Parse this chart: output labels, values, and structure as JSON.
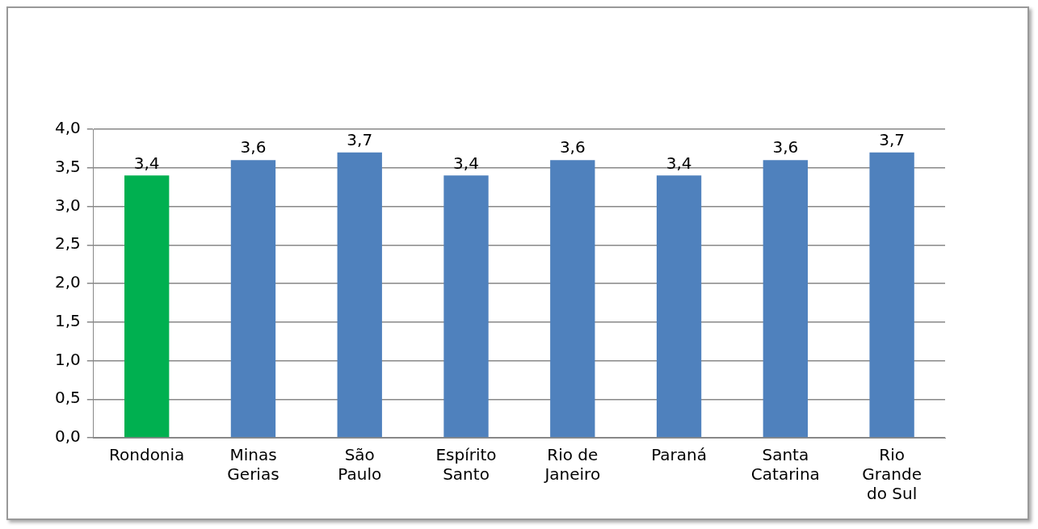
{
  "chart_data": {
    "type": "bar",
    "categories": [
      "Rondonia",
      "Minas Gerias",
      "São Paulo",
      "Espírito Santo",
      "Rio de Janeiro",
      "Paraná",
      "Santa Catarina",
      "Rio Grande do Sul"
    ],
    "values": [
      3.4,
      3.6,
      3.7,
      3.4,
      3.6,
      3.4,
      3.6,
      3.7
    ],
    "colors": [
      "#00b050",
      "#4f81bd",
      "#4f81bd",
      "#4f81bd",
      "#4f81bd",
      "#4f81bd",
      "#4f81bd",
      "#4f81bd"
    ],
    "value_labels": [
      "3,4",
      "3,6",
      "3,7",
      "3,4",
      "3,6",
      "3,4",
      "3,6",
      "3,7"
    ],
    "ylim": [
      0,
      4
    ],
    "yticks": [
      {
        "value": 0,
        "label": "0,0"
      },
      {
        "value": 0.5,
        "label": "0,5"
      },
      {
        "value": 1,
        "label": "1,0"
      },
      {
        "value": 1.5,
        "label": "1,5"
      },
      {
        "value": 2,
        "label": "2,0"
      },
      {
        "value": 2.5,
        "label": "2,5"
      },
      {
        "value": 3,
        "label": "3,0"
      },
      {
        "value": 3.5,
        "label": "3,5"
      },
      {
        "value": 4,
        "label": "4,0"
      }
    ],
    "grid": "y",
    "legend": false
  }
}
